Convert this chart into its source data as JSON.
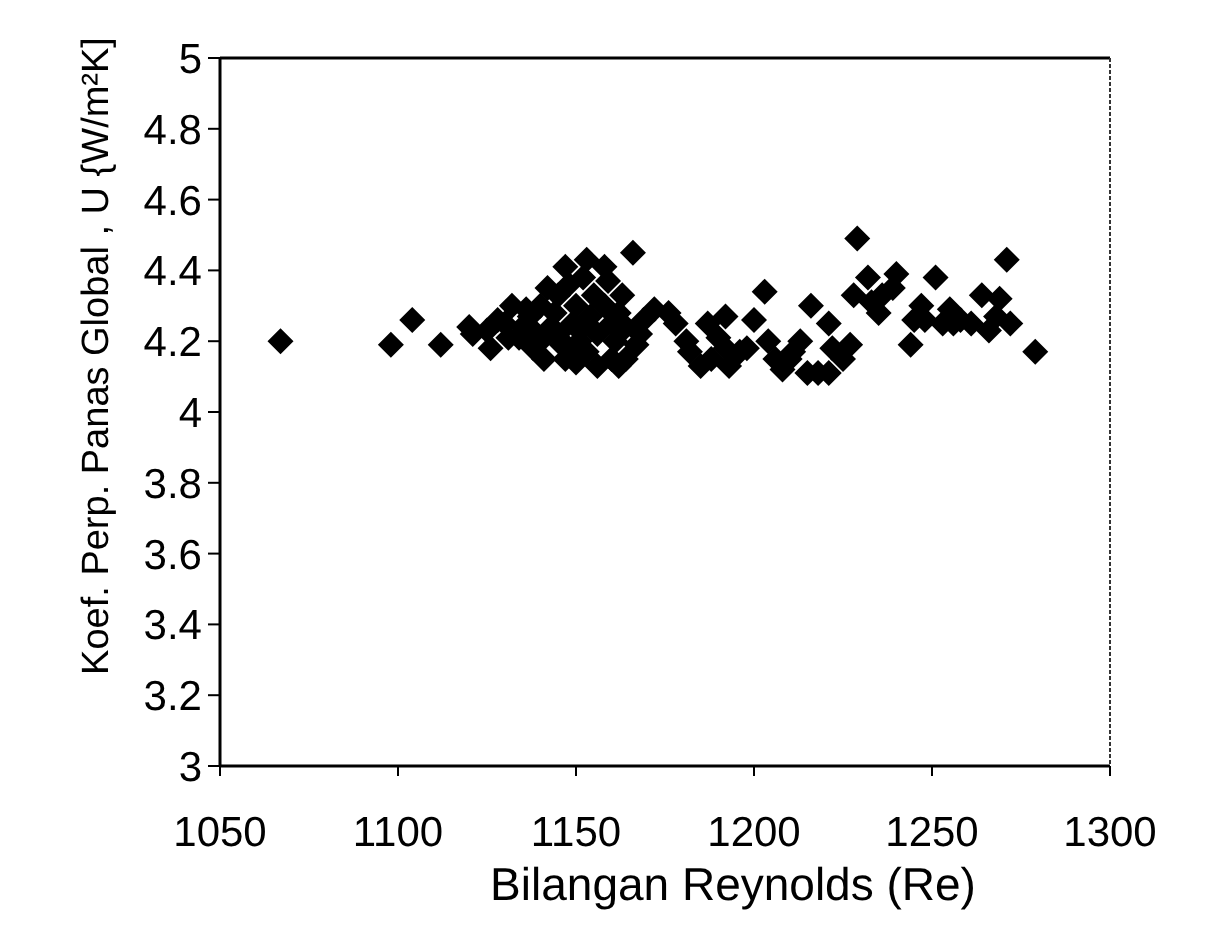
{
  "chart_data": {
    "type": "scatter",
    "xlabel": "Bilangan Reynolds (Re)",
    "ylabel": "Koef. Perp. Panas Global , U {W/m²K]",
    "xlim": [
      1050,
      1300
    ],
    "xticks": [
      1050,
      1100,
      1150,
      1200,
      1250,
      1300
    ],
    "ylim": [
      3,
      5
    ],
    "yticks": [
      3,
      3.2,
      3.4,
      3.6,
      3.8,
      4,
      4.2,
      4.4,
      4.6,
      4.8,
      5
    ],
    "marker": "diamond",
    "color": "#000000",
    "x": [
      1067,
      1098,
      1104,
      1112,
      1120,
      1121,
      1125,
      1126,
      1128,
      1130,
      1131,
      1132,
      1134,
      1135,
      1136,
      1137,
      1138,
      1138,
      1140,
      1140,
      1141,
      1142,
      1143,
      1144,
      1145,
      1145,
      1146,
      1147,
      1147,
      1148,
      1148,
      1149,
      1150,
      1150,
      1151,
      1152,
      1152,
      1153,
      1153,
      1154,
      1155,
      1156,
      1156,
      1158,
      1158,
      1159,
      1160,
      1160,
      1161,
      1162,
      1162,
      1163,
      1164,
      1164,
      1166,
      1167,
      1168,
      1169,
      1172,
      1176,
      1178,
      1181,
      1182,
      1185,
      1187,
      1188,
      1190,
      1192,
      1192,
      1193,
      1196,
      1198,
      1200,
      1203,
      1204,
      1206,
      1208,
      1210,
      1211,
      1213,
      1215,
      1216,
      1218,
      1221,
      1221,
      1222,
      1225,
      1227,
      1228,
      1229,
      1232,
      1233,
      1235,
      1236,
      1239,
      1240,
      1244,
      1245,
      1247,
      1248,
      1251,
      1253,
      1255,
      1256,
      1258,
      1261,
      1264,
      1266,
      1268,
      1269,
      1271,
      1272,
      1279
    ],
    "values": [
      4.2,
      4.19,
      4.26,
      4.19,
      4.24,
      4.22,
      4.23,
      4.18,
      4.26,
      4.25,
      4.21,
      4.3,
      4.21,
      4.24,
      4.29,
      4.27,
      4.18,
      4.23,
      4.3,
      4.2,
      4.15,
      4.35,
      4.24,
      4.28,
      4.33,
      4.22,
      4.19,
      4.41,
      4.15,
      4.36,
      4.18,
      4.25,
      4.3,
      4.14,
      4.2,
      4.38,
      4.24,
      4.43,
      4.17,
      4.27,
      4.33,
      4.22,
      4.13,
      4.41,
      4.3,
      4.37,
      4.25,
      4.15,
      4.2,
      4.13,
      4.28,
      4.33,
      4.15,
      4.24,
      4.45,
      4.19,
      4.22,
      4.26,
      4.29,
      4.28,
      4.25,
      4.2,
      4.17,
      4.13,
      4.25,
      4.15,
      4.21,
      4.27,
      4.18,
      4.13,
      4.17,
      4.18,
      4.26,
      4.34,
      4.2,
      4.15,
      4.12,
      4.15,
      4.17,
      4.2,
      4.11,
      4.3,
      4.11,
      4.25,
      4.11,
      4.18,
      4.15,
      4.19,
      4.33,
      4.49,
      4.38,
      4.31,
      4.28,
      4.33,
      4.35,
      4.39,
      4.19,
      4.26,
      4.3,
      4.26,
      4.38,
      4.25,
      4.29,
      4.25,
      4.26,
      4.25,
      4.33,
      4.23,
      4.27,
      4.32,
      4.43,
      4.25,
      4.17
    ]
  }
}
